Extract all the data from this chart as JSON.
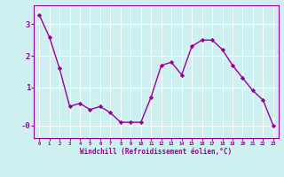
{
  "x": [
    0,
    1,
    2,
    3,
    4,
    5,
    6,
    7,
    8,
    9,
    10,
    11,
    12,
    13,
    14,
    15,
    16,
    17,
    18,
    19,
    20,
    21,
    22,
    23
  ],
  "y": [
    3.3,
    2.6,
    1.6,
    0.4,
    0.5,
    0.3,
    0.4,
    0.2,
    -0.1,
    -0.1,
    -0.1,
    0.7,
    1.7,
    1.8,
    1.4,
    2.3,
    2.5,
    2.5,
    2.2,
    1.7,
    1.3,
    0.9,
    0.6,
    -0.2
  ],
  "line_color": "#990099",
  "marker": "D",
  "markersize": 2.2,
  "linewidth": 1.0,
  "bg_color": "#cff0f0",
  "grid_color": "#ffffff",
  "xlabel": "Windchill (Refroidissement éolien,°C)",
  "xlabel_color": "#990099",
  "tick_color": "#990099",
  "ylabel_ticks": [
    "-0",
    "1",
    "2",
    "3"
  ],
  "yticks": [
    -0.2,
    1.0,
    2.0,
    3.0
  ],
  "ylim": [
    -0.6,
    3.6
  ],
  "xlim": [
    -0.5,
    23.5
  ],
  "xtick_labels": [
    "0",
    "1",
    "2",
    "3",
    "4",
    "5",
    "6",
    "7",
    "8",
    "9",
    "10",
    "11",
    "12",
    "13",
    "14",
    "15",
    "16",
    "17",
    "18",
    "19",
    "20",
    "21",
    "22",
    "23"
  ]
}
